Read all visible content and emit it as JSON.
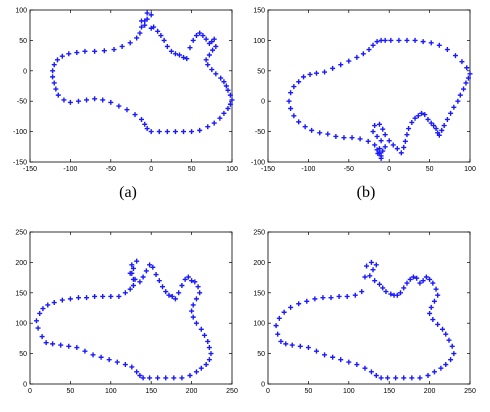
{
  "figure": {
    "captions": [
      "(a)",
      "(b)"
    ],
    "marker_color": "#1a1aff",
    "axis_color": "#000000"
  },
  "chart_data": [
    {
      "type": "scatter",
      "title": "",
      "caption": "(a)",
      "xlabel": "",
      "ylabel": "",
      "xlim": [
        -150,
        100
      ],
      "ylim": [
        -150,
        100
      ],
      "xticks": [
        -150,
        -100,
        -50,
        0,
        50,
        100
      ],
      "yticks": [
        -150,
        -100,
        -50,
        0,
        50,
        100
      ],
      "grid": false,
      "marker": "+",
      "series": [
        {
          "x": [
            -5,
            0,
            -5,
            -12,
            -8,
            0,
            3,
            8,
            12,
            16,
            20,
            25,
            30,
            35,
            40,
            44,
            48,
            52,
            56,
            60,
            64,
            68,
            72,
            75,
            78,
            80,
            76,
            72,
            68,
            70,
            75,
            80,
            86,
            90,
            93,
            95,
            98,
            100,
            98,
            95,
            90,
            85,
            78,
            70,
            60,
            50,
            40,
            30,
            20,
            10,
            0,
            -5,
            -8,
            -12,
            -20,
            -30,
            -40,
            -50,
            -60,
            -70,
            -80,
            -90,
            -100,
            -108,
            -115,
            -118,
            -120,
            -122,
            -122,
            -120,
            -116,
            -110,
            -102,
            -92,
            -82,
            -70,
            -58,
            -46,
            -36,
            -26,
            -18,
            -14,
            -12,
            -8
          ],
          "y": [
            95,
            92,
            85,
            82,
            75,
            70,
            72,
            65,
            58,
            50,
            40,
            32,
            28,
            26,
            22,
            20,
            38,
            50,
            58,
            62,
            58,
            52,
            45,
            48,
            52,
            40,
            34,
            26,
            18,
            10,
            2,
            -5,
            -12,
            -18,
            -25,
            -32,
            -40,
            -48,
            -55,
            -62,
            -70,
            -78,
            -86,
            -92,
            -98,
            -100,
            -100,
            -100,
            -100,
            -100,
            -100,
            -95,
            -88,
            -80,
            -72,
            -64,
            -58,
            -52,
            -48,
            -46,
            -48,
            -50,
            -52,
            -48,
            -40,
            -30,
            -20,
            -10,
            0,
            10,
            18,
            24,
            28,
            30,
            32,
            32,
            33,
            35,
            40,
            46,
            54,
            62,
            72,
            82
          ]
        }
      ]
    },
    {
      "type": "scatter",
      "title": "",
      "caption": "(b)",
      "xlabel": "",
      "ylabel": "",
      "xlim": [
        -150,
        100
      ],
      "ylim": [
        -100,
        150
      ],
      "xticks": [
        -150,
        -100,
        -50,
        0,
        50,
        100
      ],
      "yticks": [
        -100,
        -50,
        0,
        50,
        100,
        150
      ],
      "grid": false,
      "marker": "+",
      "series": [
        {
          "x": [
            -15,
            -12,
            -10,
            -8,
            -5,
            -10,
            -15,
            -20,
            -18,
            -12,
            -8,
            -5,
            0,
            5,
            10,
            15,
            18,
            20,
            22,
            24,
            28,
            32,
            36,
            40,
            44,
            48,
            52,
            55,
            58,
            60,
            62,
            65,
            68,
            72,
            76,
            80,
            85,
            88,
            92,
            95,
            98,
            100,
            96,
            90,
            82,
            72,
            62,
            52,
            42,
            32,
            22,
            12,
            2,
            -5,
            -10,
            -15,
            -20,
            -25,
            -32,
            -40,
            -50,
            -60,
            -70,
            -80,
            -90,
            -98,
            -106,
            -112,
            -118,
            -122,
            -124,
            -122,
            -118,
            -112,
            -104,
            -96,
            -86,
            -76,
            -66,
            -56,
            -46,
            -36,
            -26,
            -18,
            -12,
            -14,
            -10
          ],
          "y": [
            -80,
            -85,
            -90,
            -82,
            -75,
            -65,
            -58,
            -50,
            -40,
            -38,
            -46,
            -55,
            -65,
            -72,
            -78,
            -85,
            -76,
            -66,
            -55,
            -45,
            -35,
            -28,
            -24,
            -20,
            -22,
            -30,
            -36,
            -40,
            -45,
            -52,
            -56,
            -48,
            -40,
            -30,
            -20,
            -10,
            0,
            10,
            20,
            30,
            38,
            45,
            55,
            65,
            75,
            85,
            92,
            96,
            98,
            100,
            100,
            100,
            100,
            100,
            100,
            98,
            92,
            85,
            78,
            72,
            66,
            60,
            54,
            48,
            46,
            44,
            40,
            32,
            24,
            14,
            0,
            -12,
            -24,
            -34,
            -42,
            -48,
            -52,
            -54,
            -58,
            -60,
            -60,
            -62,
            -66,
            -72,
            -78,
            -86,
            -94
          ]
        }
      ]
    },
    {
      "type": "scatter",
      "title": "",
      "caption": "",
      "xlabel": "",
      "ylabel": "",
      "xlim": [
        0,
        250
      ],
      "ylim": [
        0,
        250
      ],
      "xticks": [
        0,
        50,
        100,
        150,
        200,
        250
      ],
      "yticks": [
        0,
        50,
        100,
        150,
        200,
        250
      ],
      "grid": false,
      "marker": "+",
      "series": [
        {
          "x": [
            126,
            132,
            128,
            124,
            128,
            136,
            140,
            144,
            148,
            152,
            156,
            160,
            164,
            168,
            172,
            176,
            180,
            184,
            188,
            192,
            196,
            200,
            204,
            208,
            210,
            206,
            202,
            200,
            202,
            206,
            212,
            216,
            220,
            222,
            224,
            222,
            218,
            212,
            206,
            198,
            188,
            178,
            168,
            158,
            148,
            140,
            136,
            132,
            126,
            118,
            108,
            98,
            88,
            78,
            68,
            58,
            48,
            38,
            28,
            20,
            15,
            10,
            8,
            12,
            16,
            22,
            30,
            40,
            50,
            60,
            70,
            80,
            90,
            100,
            110,
            118,
            124,
            128,
            130,
            126
          ],
          "y": [
            196,
            202,
            190,
            182,
            172,
            168,
            176,
            186,
            196,
            192,
            180,
            170,
            160,
            152,
            146,
            144,
            140,
            150,
            162,
            172,
            176,
            170,
            168,
            160,
            150,
            140,
            130,
            120,
            110,
            100,
            90,
            80,
            70,
            60,
            50,
            40,
            32,
            26,
            20,
            14,
            10,
            10,
            10,
            10,
            10,
            10,
            14,
            20,
            28,
            32,
            36,
            40,
            44,
            48,
            54,
            60,
            62,
            64,
            66,
            68,
            78,
            92,
            104,
            116,
            124,
            130,
            134,
            138,
            140,
            142,
            142,
            144,
            144,
            144,
            144,
            150,
            156,
            162,
            172,
            182
          ]
        }
      ]
    },
    {
      "type": "scatter",
      "title": "",
      "caption": "",
      "xlabel": "",
      "ylabel": "",
      "xlim": [
        0,
        250
      ],
      "ylim": [
        0,
        250
      ],
      "xticks": [
        0,
        50,
        100,
        150,
        200,
        250
      ],
      "yticks": [
        0,
        50,
        100,
        150,
        200,
        250
      ],
      "grid": false,
      "marker": "+",
      "series": [
        {
          "x": [
            122,
            128,
            134,
            130,
            126,
            132,
            138,
            142,
            146,
            152,
            156,
            160,
            164,
            168,
            172,
            176,
            180,
            184,
            188,
            192,
            196,
            200,
            204,
            208,
            210,
            206,
            202,
            200,
            204,
            210,
            216,
            220,
            224,
            228,
            230,
            226,
            220,
            214,
            206,
            198,
            188,
            178,
            168,
            158,
            148,
            140,
            134,
            128,
            120,
            110,
            100,
            90,
            80,
            70,
            60,
            50,
            40,
            30,
            22,
            16,
            12,
            10,
            14,
            20,
            28,
            38,
            48,
            58,
            68,
            78,
            88,
            98,
            108,
            116,
            120
          ],
          "y": [
            194,
            200,
            196,
            188,
            178,
            170,
            164,
            158,
            152,
            148,
            146,
            146,
            150,
            158,
            166,
            172,
            176,
            174,
            166,
            170,
            176,
            172,
            166,
            156,
            146,
            136,
            126,
            116,
            106,
            98,
            90,
            82,
            72,
            62,
            50,
            40,
            32,
            26,
            20,
            14,
            10,
            10,
            10,
            10,
            10,
            10,
            14,
            20,
            26,
            32,
            36,
            40,
            44,
            48,
            54,
            60,
            62,
            64,
            66,
            70,
            82,
            96,
            108,
            118,
            126,
            132,
            136,
            140,
            142,
            142,
            144,
            144,
            146,
            152,
            176
          ]
        }
      ]
    }
  ]
}
